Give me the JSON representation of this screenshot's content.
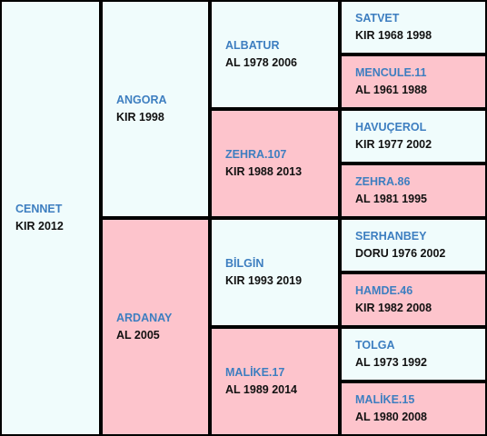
{
  "horses": {
    "g1": {
      "name": "CENNET",
      "info": "KIR 2012"
    },
    "sire": {
      "name": "ANGORA",
      "info": "KIR 1998"
    },
    "dam": {
      "name": "ARDANAY",
      "info": "AL 2005"
    },
    "ss": {
      "name": "ALBATUR",
      "info": "AL 1978 2006"
    },
    "sd": {
      "name": "ZEHRA.107",
      "info": "KIR 1988 2013"
    },
    "ds": {
      "name": "BİLGİN",
      "info": "KIR 1993 2019"
    },
    "dd": {
      "name": "MALİKE.17",
      "info": "AL 1989 2014"
    },
    "sss": {
      "name": "SATVET",
      "info": "KIR 1968 1998"
    },
    "ssd": {
      "name": "MENCULE.11",
      "info": "AL 1961 1988"
    },
    "sds": {
      "name": "HAVUÇEROL",
      "info": "KIR 1977 2002"
    },
    "sdd": {
      "name": "ZEHRA.86",
      "info": "AL 1981 1995"
    },
    "dss": {
      "name": "SERHANBEY",
      "info": "DORU 1976 2002"
    },
    "dsd": {
      "name": "HAMDE.46",
      "info": "KIR 1982 2008"
    },
    "dds": {
      "name": "TOLGA",
      "info": "AL 1973 1992"
    },
    "ddd": {
      "name": "MALİKE.15",
      "info": "AL 1980 2008"
    }
  }
}
